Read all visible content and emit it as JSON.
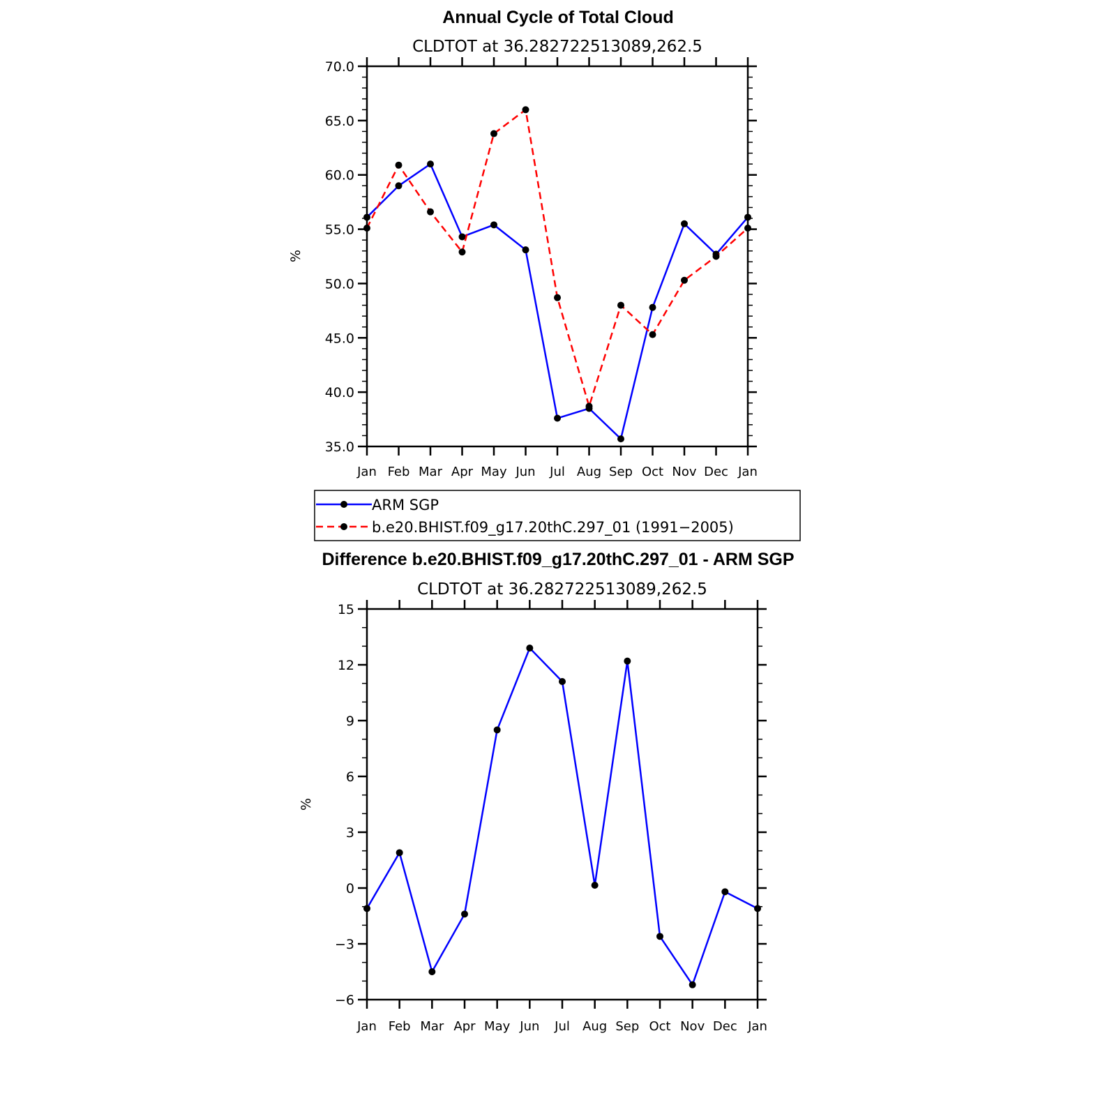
{
  "chart_data": [
    {
      "type": "line",
      "title": "Annual Cycle of Total Cloud",
      "subtitle": "CLDTOT at 36.282722513089,262.5",
      "ylabel": "%",
      "xlabel": "",
      "ylim": [
        35,
        70
      ],
      "yticks": [
        "35.0",
        "40.0",
        "45.0",
        "50.0",
        "55.0",
        "60.0",
        "65.0",
        "70.0"
      ],
      "ytick_values": [
        35,
        40,
        45,
        50,
        55,
        60,
        65,
        70
      ],
      "categories": [
        "Jan",
        "Feb",
        "Mar",
        "Apr",
        "May",
        "Jun",
        "Jul",
        "Aug",
        "Sep",
        "Oct",
        "Nov",
        "Dec",
        "Jan"
      ],
      "legend_position": "below",
      "series": [
        {
          "name": "ARM SGP",
          "color": "#0000ff",
          "dash": "solid",
          "values": [
            56.1,
            59.0,
            61.0,
            54.3,
            55.4,
            53.1,
            37.6,
            38.5,
            35.7,
            47.8,
            55.5,
            52.7,
            56.1
          ]
        },
        {
          "name": "b.e20.BHIST.f09_g17.20thC.297_01 (1991-2005)",
          "color": "#ff0000",
          "dash": "dashed",
          "values": [
            55.1,
            60.9,
            56.6,
            52.9,
            63.8,
            66.0,
            48.7,
            38.7,
            48.0,
            45.3,
            50.3,
            52.5,
            55.1
          ]
        }
      ]
    },
    {
      "type": "line",
      "title": "Difference b.e20.BHIST.f09_g17.20thC.297_01 - ARM SGP",
      "subtitle": "CLDTOT at 36.282722513089,262.5",
      "ylabel": "%",
      "xlabel": "",
      "ylim": [
        -6,
        15
      ],
      "yticks": [
        "-6",
        "-3",
        "0",
        "3",
        "6",
        "9",
        "12",
        "15"
      ],
      "ytick_values": [
        -6,
        -3,
        0,
        3,
        6,
        9,
        12,
        15
      ],
      "categories": [
        "Jan",
        "Feb",
        "Mar",
        "Apr",
        "May",
        "Jun",
        "Jul",
        "Aug",
        "Sep",
        "Oct",
        "Nov",
        "Dec",
        "Jan"
      ],
      "series": [
        {
          "name": "Difference",
          "color": "#0000ff",
          "dash": "solid",
          "values": [
            -1.1,
            1.9,
            -4.5,
            -1.4,
            8.5,
            12.9,
            11.1,
            0.15,
            12.2,
            -2.6,
            -5.2,
            -0.2,
            -1.1
          ]
        }
      ]
    }
  ]
}
